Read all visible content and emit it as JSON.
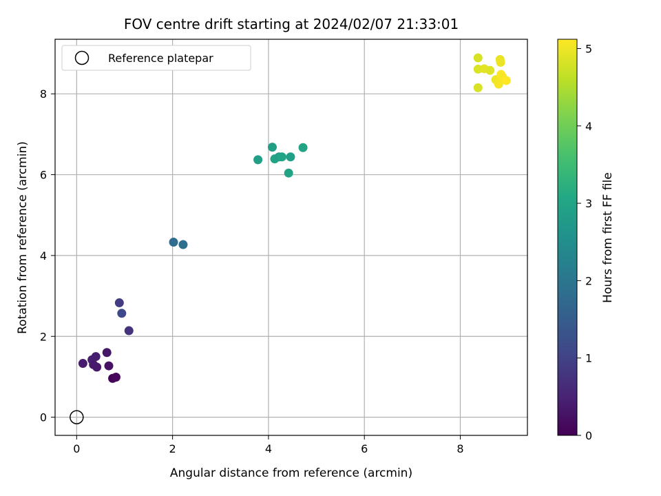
{
  "chart_data": {
    "type": "scatter",
    "title": "FOV centre drift starting at 2024/02/07 21:33:01",
    "xlabel": "Angular distance from reference (arcmin)",
    "ylabel": "Rotation from reference (arcmin)",
    "xlim": [
      -0.45,
      9.4
    ],
    "ylim": [
      -0.45,
      9.35
    ],
    "xticks": [
      0,
      2,
      4,
      6,
      8
    ],
    "yticks": [
      0,
      2,
      4,
      6,
      8
    ],
    "grid": true,
    "legend": {
      "placement": "upper-left",
      "entries": [
        "Reference platepar"
      ]
    },
    "reference_point": {
      "x": 0,
      "y": 0,
      "label": "Reference platepar"
    },
    "colorbar": {
      "label": "Hours from first FF file",
      "colormap": "viridis",
      "range": [
        0,
        5.12
      ],
      "ticks": [
        0,
        1,
        2,
        3,
        4,
        5
      ]
    },
    "points": [
      {
        "x": 0.13,
        "y": 1.33,
        "c": 0.4
      },
      {
        "x": 0.32,
        "y": 1.42,
        "c": 0.45
      },
      {
        "x": 0.35,
        "y": 1.3,
        "c": 0.38
      },
      {
        "x": 0.4,
        "y": 1.5,
        "c": 0.42
      },
      {
        "x": 0.42,
        "y": 1.24,
        "c": 0.35
      },
      {
        "x": 0.63,
        "y": 1.6,
        "c": 0.3
      },
      {
        "x": 0.67,
        "y": 1.27,
        "c": 0.25
      },
      {
        "x": 0.75,
        "y": 0.96,
        "c": 0.05
      },
      {
        "x": 0.82,
        "y": 0.99,
        "c": 0.1
      },
      {
        "x": 0.89,
        "y": 2.83,
        "c": 0.9
      },
      {
        "x": 0.94,
        "y": 2.57,
        "c": 1.1
      },
      {
        "x": 1.09,
        "y": 2.14,
        "c": 0.75
      },
      {
        "x": 2.02,
        "y": 4.33,
        "c": 1.8
      },
      {
        "x": 2.22,
        "y": 4.27,
        "c": 1.85
      },
      {
        "x": 3.78,
        "y": 6.37,
        "c": 2.9
      },
      {
        "x": 4.08,
        "y": 6.68,
        "c": 2.85
      },
      {
        "x": 4.13,
        "y": 6.39,
        "c": 2.95
      },
      {
        "x": 4.22,
        "y": 6.44,
        "c": 2.9
      },
      {
        "x": 4.28,
        "y": 6.44,
        "c": 3.0
      },
      {
        "x": 4.42,
        "y": 6.04,
        "c": 2.95
      },
      {
        "x": 4.46,
        "y": 6.44,
        "c": 2.9
      },
      {
        "x": 4.72,
        "y": 6.67,
        "c": 2.98
      },
      {
        "x": 8.37,
        "y": 8.89,
        "c": 4.8
      },
      {
        "x": 8.37,
        "y": 8.61,
        "c": 4.85
      },
      {
        "x": 8.37,
        "y": 8.15,
        "c": 4.82
      },
      {
        "x": 8.5,
        "y": 8.62,
        "c": 4.9
      },
      {
        "x": 8.62,
        "y": 8.58,
        "c": 4.88
      },
      {
        "x": 8.74,
        "y": 8.35,
        "c": 5.0
      },
      {
        "x": 8.8,
        "y": 8.24,
        "c": 5.05
      },
      {
        "x": 8.83,
        "y": 8.85,
        "c": 4.95
      },
      {
        "x": 8.84,
        "y": 8.78,
        "c": 4.98
      },
      {
        "x": 8.85,
        "y": 8.48,
        "c": 5.1
      },
      {
        "x": 8.88,
        "y": 8.42,
        "c": 5.08
      },
      {
        "x": 8.96,
        "y": 8.33,
        "c": 5.12
      }
    ]
  }
}
